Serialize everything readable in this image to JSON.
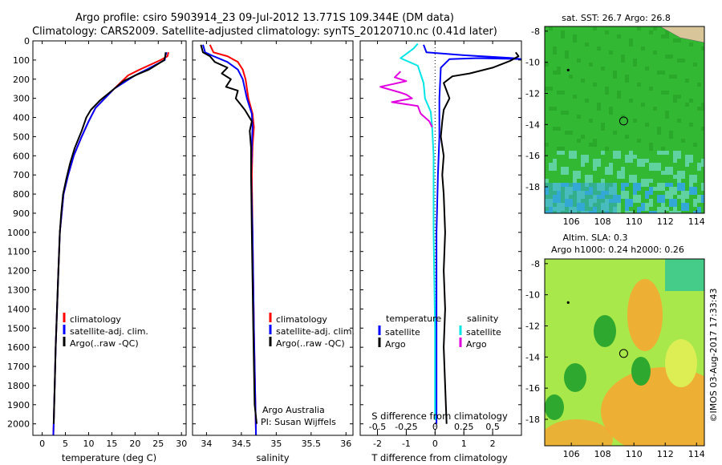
{
  "figure": {
    "title_line1": "Argo profile: csiro 5903914_23 09-Jul-2012 13.771S 109.344E (DM data)",
    "title_line2": "Climatology: CARS2009. Satellite-adjusted climatology: synTS_20120710.nc (0.41d later)",
    "credit": "©IMOS 03-Aug-2017 17:33:43"
  },
  "chart_data": [
    {
      "id": "temperature",
      "type": "line",
      "xlabel": "temperature (deg C)",
      "ylabel": "",
      "xlim": [
        -2,
        31
      ],
      "ylim": [
        2060,
        0
      ],
      "xticks": [
        "0",
        "5",
        "10",
        "15",
        "20",
        "25",
        "30"
      ],
      "yticks": [
        "0",
        "100",
        "200",
        "300",
        "400",
        "500",
        "600",
        "700",
        "800",
        "900",
        "1000",
        "1100",
        "1200",
        "1300",
        "1400",
        "1500",
        "1600",
        "1700",
        "1800",
        "1900",
        "2000"
      ],
      "legend": [
        "climatology",
        "satellite-adj. clim.",
        "Argo(..raw -QC)"
      ],
      "colors": {
        "climatology": "#ff0000",
        "satellite": "#0000ff",
        "argo": "#000000"
      },
      "series": [
        {
          "name": "climatology",
          "color": "#ff0000",
          "points": [
            [
              27.2,
              60
            ],
            [
              27.0,
              80
            ],
            [
              25.5,
              100
            ],
            [
              21.0,
              150
            ],
            [
              18.5,
              180
            ],
            [
              15.5,
              250
            ],
            [
              11.5,
              350
            ],
            [
              10.0,
              420
            ],
            [
              8.5,
              500
            ],
            [
              6.8,
              600
            ],
            [
              5.6,
              700
            ],
            [
              4.6,
              800
            ],
            [
              4.2,
              900
            ],
            [
              3.8,
              1000
            ],
            [
              3.5,
              1200
            ],
            [
              3.2,
              1400
            ],
            [
              2.9,
              1600
            ],
            [
              2.7,
              1800
            ],
            [
              2.4,
              2060
            ]
          ]
        },
        {
          "name": "satellite-adj. clim.",
          "color": "#0000ff",
          "points": [
            [
              26.8,
              60
            ],
            [
              26.5,
              80
            ],
            [
              26.4,
              100
            ],
            [
              22.5,
              150
            ],
            [
              20.0,
              180
            ],
            [
              15.5,
              250
            ],
            [
              11.5,
              350
            ],
            [
              10.0,
              420
            ],
            [
              8.5,
              500
            ],
            [
              6.8,
              600
            ],
            [
              5.6,
              700
            ],
            [
              4.6,
              800
            ],
            [
              4.2,
              900
            ],
            [
              3.8,
              1000
            ],
            [
              3.5,
              1200
            ],
            [
              3.2,
              1400
            ],
            [
              2.9,
              1600
            ],
            [
              2.7,
              1800
            ],
            [
              2.4,
              2060
            ]
          ]
        },
        {
          "name": "Argo(..raw -QC)",
          "color": "#000000",
          "points": [
            [
              26.6,
              60
            ],
            [
              26.5,
              80
            ],
            [
              26.3,
              100
            ],
            [
              23.0,
              150
            ],
            [
              20.5,
              175
            ],
            [
              17.5,
              210
            ],
            [
              15.0,
              260
            ],
            [
              12.5,
              310
            ],
            [
              10.5,
              360
            ],
            [
              9.5,
              400
            ],
            [
              8.5,
              470
            ],
            [
              7.0,
              560
            ],
            [
              6.0,
              640
            ],
            [
              5.2,
              720
            ],
            [
              4.5,
              800
            ],
            [
              4.1,
              900
            ],
            [
              3.8,
              1000
            ],
            [
              3.5,
              1200
            ],
            [
              3.2,
              1400
            ],
            [
              2.9,
              1600
            ],
            [
              2.7,
              1800
            ],
            [
              2.5,
              2000
            ]
          ]
        }
      ]
    },
    {
      "id": "salinity",
      "type": "line",
      "xlabel": "salinity",
      "ylabel": "",
      "xlim": [
        33.8,
        36.1
      ],
      "ylim": [
        2060,
        0
      ],
      "xticks": [
        "34",
        "34.5",
        "35",
        "35.5",
        "36"
      ],
      "legend": [
        "climatology",
        "satellite-adj. clim.",
        "Argo(..raw -QC)"
      ],
      "annotation": [
        "Argo Australia",
        "PI: Susan Wijffels"
      ],
      "series": [
        {
          "name": "climatology",
          "color": "#ff0000",
          "points": [
            [
              34.05,
              20
            ],
            [
              34.1,
              60
            ],
            [
              34.3,
              80
            ],
            [
              34.45,
              110
            ],
            [
              34.52,
              150
            ],
            [
              34.56,
              200
            ],
            [
              34.6,
              300
            ],
            [
              34.66,
              380
            ],
            [
              34.68,
              450
            ],
            [
              34.66,
              550
            ],
            [
              34.65,
              700
            ],
            [
              34.66,
              1000
            ],
            [
              34.68,
              1500
            ],
            [
              34.71,
              2060
            ]
          ]
        },
        {
          "name": "satellite-adj. clim.",
          "color": "#0000ff",
          "points": [
            [
              33.95,
              20
            ],
            [
              33.98,
              60
            ],
            [
              34.1,
              80
            ],
            [
              34.3,
              110
            ],
            [
              34.45,
              150
            ],
            [
              34.52,
              200
            ],
            [
              34.58,
              300
            ],
            [
              34.65,
              380
            ],
            [
              34.66,
              450
            ],
            [
              34.65,
              550
            ],
            [
              34.64,
              700
            ],
            [
              34.66,
              1000
            ],
            [
              34.68,
              1500
            ],
            [
              34.71,
              2060
            ]
          ]
        },
        {
          "name": "Argo(..raw -QC)",
          "color": "#000000",
          "points": [
            [
              33.92,
              20
            ],
            [
              33.95,
              60
            ],
            [
              34.05,
              80
            ],
            [
              34.12,
              110
            ],
            [
              34.3,
              140
            ],
            [
              34.22,
              170
            ],
            [
              34.35,
              200
            ],
            [
              34.28,
              240
            ],
            [
              34.45,
              260
            ],
            [
              34.42,
              300
            ],
            [
              34.55,
              360
            ],
            [
              34.65,
              420
            ],
            [
              34.62,
              470
            ],
            [
              34.64,
              560
            ],
            [
              34.64,
              700
            ],
            [
              34.65,
              1000
            ],
            [
              34.67,
              1500
            ],
            [
              34.69,
              1900
            ],
            [
              34.72,
              2000
            ]
          ]
        }
      ]
    },
    {
      "id": "difference",
      "type": "line",
      "xlabel": "T difference from climatology",
      "xlabel_top": "S difference from climatology",
      "xlim": [
        -2.6,
        3.0
      ],
      "ylim": [
        2060,
        0
      ],
      "xticks": [
        "-2",
        "-1",
        "0",
        "1",
        "2"
      ],
      "xticks_top": [
        "-0.5",
        "-0.25",
        "0",
        "0.25",
        "0.5"
      ],
      "legend_titles": [
        "temperature",
        "salinity"
      ],
      "legend": [
        "satellite",
        "Argo",
        "satellite",
        "Argo"
      ],
      "series": [
        {
          "name": "satellite",
          "group": "temperature",
          "color": "#0000ff",
          "points": [
            [
              -0.4,
              20
            ],
            [
              -0.3,
              60
            ],
            [
              1.0,
              75
            ],
            [
              2.7,
              90
            ],
            [
              3.0,
              95
            ],
            [
              1.5,
              90
            ],
            [
              0.5,
              95
            ],
            [
              0.2,
              140
            ],
            [
              0.15,
              300
            ],
            [
              0.15,
              500
            ],
            [
              0.1,
              700
            ],
            [
              0.05,
              1000
            ],
            [
              0.05,
              1500
            ],
            [
              0.05,
              2000
            ]
          ]
        },
        {
          "name": "Argo",
          "group": "temperature",
          "color": "#000000",
          "points": [
            [
              2.8,
              60
            ],
            [
              2.9,
              80
            ],
            [
              2.6,
              105
            ],
            [
              2.0,
              140
            ],
            [
              1.2,
              170
            ],
            [
              0.6,
              185
            ],
            [
              0.3,
              220
            ],
            [
              0.5,
              300
            ],
            [
              0.3,
              360
            ],
            [
              0.25,
              420
            ],
            [
              0.2,
              500
            ],
            [
              0.3,
              600
            ],
            [
              0.25,
              700
            ],
            [
              0.3,
              800
            ],
            [
              0.35,
              1000
            ],
            [
              0.3,
              1200
            ],
            [
              0.35,
              1400
            ],
            [
              0.3,
              1600
            ],
            [
              0.35,
              1800
            ],
            [
              0.4,
              2000
            ]
          ]
        },
        {
          "name": "satellite",
          "group": "salinity",
          "color": "#00e5e5",
          "points": [
            [
              -0.6,
              15
            ],
            [
              -0.75,
              40
            ],
            [
              -1.2,
              90
            ],
            [
              -0.6,
              130
            ],
            [
              -0.4,
              220
            ],
            [
              -0.35,
              300
            ],
            [
              -0.15,
              370
            ],
            [
              -0.1,
              450
            ],
            [
              -0.05,
              600
            ],
            [
              -0.05,
              800
            ],
            [
              -0.05,
              1000
            ],
            [
              0.0,
              1500
            ],
            [
              0.0,
              1980
            ]
          ]
        },
        {
          "name": "Argo",
          "group": "salinity",
          "color": "#e000e0",
          "points": [
            [
              -1.2,
              160
            ],
            [
              -1.4,
              190
            ],
            [
              -1.0,
              210
            ],
            [
              -1.9,
              240
            ],
            [
              -1.2,
              270
            ],
            [
              -1.0,
              280
            ],
            [
              -0.8,
              300
            ],
            [
              -1.5,
              320
            ],
            [
              -0.6,
              340
            ],
            [
              -0.5,
              380
            ],
            [
              -0.2,
              420
            ],
            [
              -0.1,
              450
            ]
          ]
        }
      ]
    },
    {
      "id": "sst_map",
      "type": "heatmap",
      "title": "sat. SST: 26.7  Argo: 26.8",
      "xlim": [
        104.3,
        114.5
      ],
      "ylim": [
        -19.7,
        -7.7
      ],
      "xticks": [
        "106",
        "108",
        "110",
        "112",
        "114"
      ],
      "yticks": [
        "-8",
        "-10",
        "-12",
        "-14",
        "-16",
        "-18"
      ],
      "marker": {
        "lon": 109.344,
        "lat": -13.771
      },
      "marker_small": {
        "lon": 105.8,
        "lat": -10.5
      },
      "colors": {
        "main": "#33b833",
        "warm": "#29a829",
        "cool": "#5fd2a0",
        "cold": "#33a8d6",
        "land": "#d8c69a"
      }
    },
    {
      "id": "sla_map",
      "type": "heatmap",
      "title": "Altim. SLA: 0.3",
      "subtitle": "Argo h1000: 0.24  h2000: 0.26",
      "xlim": [
        104.3,
        114.5
      ],
      "ylim": [
        -19.7,
        -7.7
      ],
      "xticks": [
        "106",
        "108",
        "110",
        "112",
        "114"
      ],
      "yticks": [
        "-8",
        "-10",
        "-12",
        "-14",
        "-16",
        "-18"
      ],
      "marker": {
        "lon": 109.344,
        "lat": -13.771
      },
      "marker_small": {
        "lon": 105.8,
        "lat": -10.5
      },
      "colors": {
        "base": "#a8e84a",
        "high": "#f5a833",
        "low": "#2fa82f",
        "mid": "#ddee55",
        "coast": "#44cc88"
      }
    }
  ]
}
